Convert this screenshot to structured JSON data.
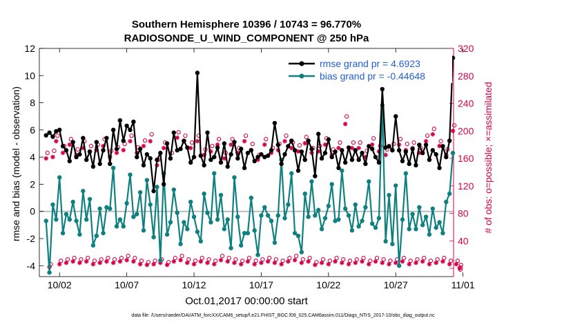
{
  "colors": {
    "rmse": "#000000",
    "bias": "#0f8080",
    "obs": "#d6004a",
    "legend_text": "#1f5fd6",
    "zero_line": "#bbbbbb"
  },
  "footer": "data file: /Users/raeder/DAI/ATM_forcXX/CAM6_setup/f.e21.FHIST_BGC.f09_025.CAM6assim.011/Diags_NTrS_2017-10/obs_diag_output.nc",
  "chart_data": {
    "type": "line",
    "title": [
      "Southern Hemisphere 10396 / 10743 = 96.770%",
      "RADIOSONDE_U_WIND_COMPONENT @ 250 hPa"
    ],
    "xlabel": "Oct.01,2017 00:00:00 start",
    "ylabel": "rmse and bias (model - observation)",
    "ylabel_right": "# of obs: o=possible; ×=assimilated",
    "xlim": [
      0.5,
      31.3
    ],
    "ylim": [
      -4.8,
      12
    ],
    "ylim_right": [
      -12,
      320
    ],
    "xticks": [
      2,
      7,
      12,
      17,
      22,
      27,
      32
    ],
    "xtick_labels": [
      "10/02",
      "10/07",
      "10/12",
      "10/17",
      "10/22",
      "10/27",
      "11/01"
    ],
    "yticks": [
      -4,
      -2,
      0,
      2,
      4,
      6,
      8,
      10,
      12
    ],
    "ytick_labels": [
      "-4",
      "-2",
      "0",
      "2",
      "4",
      "6",
      "8",
      "10",
      "12"
    ],
    "yticks_right": [
      0,
      40,
      80,
      120,
      160,
      200,
      240,
      280,
      320
    ],
    "ytick_labels_right": [
      "0",
      "40",
      "80",
      "120",
      "160",
      "200",
      "240",
      "280",
      "320"
    ],
    "legend": {
      "position": "top-right",
      "entries": [
        "rmse grand pr = 4.6923",
        "bias grand pr = -0.44648"
      ]
    },
    "series": [
      {
        "name": "rmse",
        "x_start": 1.0,
        "x_step": 0.25,
        "values": [
          5.6,
          5.8,
          5.5,
          5.9,
          6.0,
          4.8,
          4.5,
          3.7,
          5.1,
          4.0,
          4.2,
          5.4,
          3.8,
          4.4,
          3.3,
          5.1,
          3.5,
          4.5,
          5.4,
          3.5,
          6.0,
          4.6,
          6.7,
          5.2,
          6.3,
          6.0,
          6.6,
          4.0,
          4.6,
          3.4,
          4.2,
          3.9,
          1.5,
          3.8,
          4.3,
          2.0,
          5.0,
          3.9,
          5.8,
          4.5,
          4.6,
          5.2,
          4.7,
          3.6,
          4.0,
          10.2,
          4.1,
          3.4,
          5.8,
          3.8,
          4.0,
          4.7,
          3.6,
          5.0,
          3.3,
          4.2,
          5.1,
          3.9,
          4.6,
          3.2,
          4.3,
          4.5,
          3.7,
          4.0,
          4.2,
          4.0,
          4.1,
          4.5,
          6.5,
          4.9,
          3.5,
          4.2,
          4.8,
          5.2,
          4.5,
          3.0,
          4.4,
          3.8,
          5.2,
          4.6,
          2.6,
          5.7,
          3.9,
          4.3,
          5.3,
          4.0,
          4.4,
          3.2,
          4.5,
          3.6,
          4.7,
          3.8,
          4.5,
          3.8,
          4.3,
          3.5,
          4.8,
          4.6,
          4.0,
          3.6,
          9.0,
          4.7,
          4.8,
          4.5,
          7.0,
          4.5,
          3.7,
          4.4,
          3.5,
          4.6,
          3.4,
          4.9,
          4.3,
          4.9,
          3.8,
          4.5,
          4.2,
          3.2,
          4.8,
          4.0,
          5.2,
          11.3
        ]
      },
      {
        "name": "bias",
        "x_start": 1.0,
        "x_step": 0.25,
        "values": [
          -0.7,
          -4.5,
          0.5,
          -0.6,
          2.5,
          -1.6,
          -0.2,
          -0.6,
          0.7,
          -0.7,
          -1.7,
          1.5,
          -0.6,
          0.9,
          -2.5,
          -1.8,
          0.2,
          -1.6,
          0.3,
          0.2,
          3.2,
          -1.1,
          -0.6,
          -1.1,
          0.6,
          2.7,
          -0.4,
          -0.2,
          1.4,
          -1.4,
          2.3,
          0.5,
          -1.9,
          1.8,
          -3.6,
          2.8,
          -1.7,
          -0.8,
          1.6,
          -0.1,
          -2.4,
          -0.8,
          -1.3,
          0.7,
          -0.4,
          -1.5,
          -2.2,
          1.3,
          -0.1,
          -0.8,
          2.8,
          -0.6,
          1.2,
          -1.3,
          -0.6,
          -2.7,
          2.5,
          -0.4,
          -2.5,
          -1.6,
          -1.6,
          1.0,
          -1.4,
          -3.2,
          -0.3,
          0.3,
          -0.3,
          -0.7,
          -2.3,
          -0.3,
          3.8,
          -0.5,
          0.5,
          2.8,
          -1.6,
          -1.8,
          -3.0,
          1.3,
          -0.4,
          2.2,
          -0.3,
          0.1,
          -1.3,
          -0.5,
          0.4,
          2.0,
          -0.7,
          -0.6,
          3.0,
          0.2,
          -0.3,
          -1.4,
          0.5,
          -1.1,
          -0.7,
          0.3,
          2.2,
          -0.9,
          -1.2,
          -0.5,
          7.8,
          -2.2,
          1.2,
          -2.4,
          1.9,
          -4.0,
          -0.6,
          2.8,
          -1.3,
          -0.2,
          -1.3,
          0.3,
          -1.0,
          -0.4,
          -1.7,
          0.2,
          -1.2,
          -0.8,
          -1.6,
          0.7,
          1.3,
          4.3
        ]
      },
      {
        "name": "possible",
        "x_start": 1.0,
        "x_step": 0.25,
        "values": [
          165,
          3,
          168,
          190,
          8,
          175,
          10,
          185,
          12,
          170,
          10,
          182,
          12,
          175,
          8,
          177,
          10,
          185,
          12,
          168,
          10,
          173,
          12,
          178,
          15,
          190,
          12,
          173,
          8,
          183,
          6,
          192,
          8,
          155,
          10,
          180,
          6,
          165,
          12,
          195,
          15,
          190,
          10,
          180,
          8,
          190,
          12,
          170,
          10,
          175,
          8,
          185,
          15,
          165,
          12,
          185,
          10,
          172,
          8,
          190,
          12,
          178,
          8,
          162,
          10,
          185,
          12,
          172,
          10,
          178,
          8,
          190,
          12,
          180,
          15,
          176,
          10,
          188,
          12,
          172,
          6,
          175,
          10,
          186,
          8,
          170,
          12,
          180,
          10,
          218,
          8,
          180,
          10,
          180,
          12,
          168,
          8,
          186,
          12,
          175,
          10,
          170,
          8,
          178,
          10,
          185,
          12,
          178,
          8,
          180,
          10,
          172,
          12,
          190,
          8,
          200,
          10,
          182,
          12,
          170,
          8,
          205,
          8,
          2
        ]
      },
      {
        "name": "assimilated",
        "x_start": 1.0,
        "x_step": 0.25,
        "values": [
          160,
          2,
          162,
          185,
          6,
          168,
          8,
          180,
          10,
          165,
          8,
          175,
          10,
          170,
          6,
          172,
          8,
          178,
          10,
          162,
          8,
          168,
          10,
          172,
          12,
          185,
          10,
          168,
          6,
          178,
          5,
          185,
          6,
          150,
          8,
          175,
          5,
          160,
          10,
          190,
          12,
          185,
          8,
          175,
          6,
          185,
          10,
          165,
          8,
          170,
          6,
          180,
          12,
          160,
          10,
          180,
          8,
          168,
          6,
          185,
          10,
          172,
          6,
          158,
          8,
          180,
          10,
          168,
          8,
          172,
          6,
          185,
          10,
          175,
          12,
          170,
          8,
          182,
          10,
          168,
          5,
          170,
          8,
          180,
          6,
          165,
          10,
          175,
          8,
          210,
          6,
          175,
          8,
          175,
          10,
          162,
          6,
          180,
          10,
          170,
          8,
          165,
          6,
          172,
          8,
          180,
          10,
          172,
          6,
          175,
          8,
          168,
          10,
          185,
          6,
          195,
          8,
          178,
          10,
          165,
          6,
          200,
          6,
          0
        ]
      }
    ]
  }
}
